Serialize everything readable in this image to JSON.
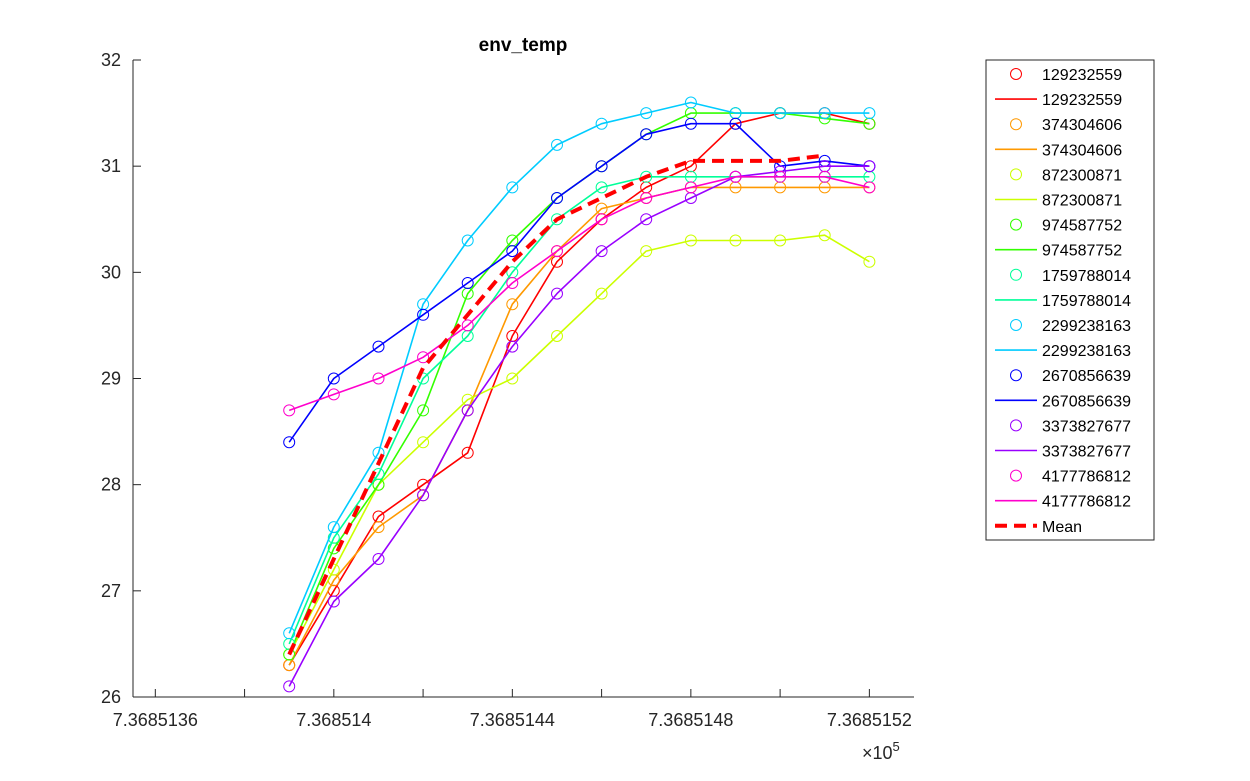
{
  "chart_data": {
    "type": "line",
    "title": "env_temp",
    "xlabel": "",
    "ylabel": "",
    "x_exponent_label": "×10",
    "x_exponent_power": "5",
    "xlim": [
      7.36851355,
      7.3685153
    ],
    "ylim": [
      26,
      32
    ],
    "x_ticks": [
      7.3685136,
      7.368514,
      7.3685144,
      7.3685148,
      7.3685152
    ],
    "x_tick_labels": [
      "7.3685136",
      "7.368514",
      "7.3685144",
      "7.3685148",
      "7.3685152"
    ],
    "y_ticks": [
      26,
      27,
      28,
      29,
      30,
      31,
      32
    ],
    "y_tick_labels": [
      "26",
      "27",
      "28",
      "29",
      "30",
      "31",
      "32"
    ],
    "legend_position": "outside-top-right",
    "series": [
      {
        "name": "129232559",
        "color": "#ff0000",
        "x": [
          7.3685139,
          7.368514,
          7.3685141,
          7.3685142,
          7.3685143,
          7.3685144,
          7.3685145,
          7.3685146,
          7.3685147,
          7.3685148,
          7.3685149,
          7.368515,
          7.3685151,
          7.3685152
        ],
        "y": [
          26.3,
          27.0,
          27.7,
          28.0,
          28.3,
          29.4,
          30.1,
          30.5,
          30.8,
          31.0,
          31.4,
          31.5,
          31.5,
          31.4
        ]
      },
      {
        "name": "374304606",
        "color": "#ff9900",
        "x": [
          7.3685139,
          7.368514,
          7.3685141,
          7.3685142,
          7.3685143,
          7.3685144,
          7.3685145,
          7.3685146,
          7.3685147,
          7.3685148,
          7.3685149,
          7.368515,
          7.3685151,
          7.3685152
        ],
        "y": [
          26.3,
          27.1,
          27.6,
          27.9,
          28.7,
          29.7,
          30.2,
          30.6,
          30.7,
          30.8,
          30.8,
          30.8,
          30.8,
          30.8
        ]
      },
      {
        "name": "872300871",
        "color": "#ccff00",
        "x": [
          7.3685139,
          7.368514,
          7.3685141,
          7.3685142,
          7.3685143,
          7.3685144,
          7.3685145,
          7.3685146,
          7.3685147,
          7.3685148,
          7.3685149,
          7.368515,
          7.3685151,
          7.3685152
        ],
        "y": [
          26.4,
          27.2,
          28.0,
          28.4,
          28.8,
          29.0,
          29.4,
          29.8,
          30.2,
          30.3,
          30.3,
          30.3,
          30.35,
          30.1
        ]
      },
      {
        "name": "974587752",
        "color": "#33ff00",
        "x": [
          7.3685139,
          7.368514,
          7.3685141,
          7.3685142,
          7.3685143,
          7.3685144,
          7.3685145,
          7.3685146,
          7.3685147,
          7.3685148,
          7.3685149,
          7.368515,
          7.3685151,
          7.3685152
        ],
        "y": [
          26.4,
          27.4,
          28.0,
          28.7,
          29.8,
          30.3,
          30.7,
          31.0,
          31.3,
          31.5,
          31.5,
          31.5,
          31.45,
          31.4
        ]
      },
      {
        "name": "1759788014",
        "color": "#00ff99",
        "x": [
          7.3685139,
          7.368514,
          7.3685141,
          7.3685142,
          7.3685143,
          7.3685144,
          7.3685145,
          7.3685146,
          7.3685147,
          7.3685148,
          7.3685149,
          7.368515,
          7.3685151,
          7.3685152
        ],
        "y": [
          26.5,
          27.5,
          28.1,
          29.0,
          29.4,
          30.0,
          30.5,
          30.8,
          30.9,
          30.9,
          30.9,
          30.9,
          30.9,
          30.9
        ]
      },
      {
        "name": "2299238163",
        "color": "#00ccff",
        "x": [
          7.3685139,
          7.368514,
          7.3685141,
          7.3685142,
          7.3685143,
          7.3685144,
          7.3685145,
          7.3685146,
          7.3685147,
          7.3685148,
          7.3685149,
          7.368515,
          7.3685151,
          7.3685152
        ],
        "y": [
          26.6,
          27.6,
          28.3,
          29.7,
          30.3,
          30.8,
          31.2,
          31.4,
          31.5,
          31.6,
          31.5,
          31.5,
          31.5,
          31.5
        ]
      },
      {
        "name": "2670856639",
        "color": "#0000ff",
        "x": [
          7.3685139,
          7.368514,
          7.3685141,
          7.3685142,
          7.3685143,
          7.3685144,
          7.3685145,
          7.3685146,
          7.3685147,
          7.3685148,
          7.3685149,
          7.368515,
          7.3685151,
          7.3685152
        ],
        "y": [
          28.4,
          29.0,
          29.3,
          29.6,
          29.9,
          30.2,
          30.7,
          31.0,
          31.3,
          31.4,
          31.4,
          31.0,
          31.05,
          31.0
        ]
      },
      {
        "name": "3373827677",
        "color": "#9900ff",
        "x": [
          7.3685139,
          7.368514,
          7.3685141,
          7.3685142,
          7.3685143,
          7.3685144,
          7.3685145,
          7.3685146,
          7.3685147,
          7.3685148,
          7.3685149,
          7.368515,
          7.3685151,
          7.3685152
        ],
        "y": [
          26.1,
          26.9,
          27.3,
          27.9,
          28.7,
          29.3,
          29.8,
          30.2,
          30.5,
          30.7,
          30.9,
          30.95,
          31.0,
          31.0
        ]
      },
      {
        "name": "4177786812",
        "color": "#ff00cc",
        "x": [
          7.3685139,
          7.368514,
          7.3685141,
          7.3685142,
          7.3685143,
          7.3685144,
          7.3685145,
          7.3685146,
          7.3685147,
          7.3685148,
          7.3685149,
          7.368515,
          7.3685151,
          7.3685152
        ],
        "y": [
          28.7,
          28.85,
          29.0,
          29.2,
          29.5,
          29.9,
          30.2,
          30.5,
          30.7,
          30.8,
          30.9,
          30.9,
          30.9,
          30.8
        ]
      },
      {
        "name": "Mean",
        "color": "#ff0000",
        "dashed": true,
        "markers": false,
        "x": [
          7.3685139,
          7.368514,
          7.3685141,
          7.3685142,
          7.3685143,
          7.3685144,
          7.3685145,
          7.3685146,
          7.3685147,
          7.3685148,
          7.3685149,
          7.368515,
          7.3685151
        ],
        "y": [
          26.4,
          27.3,
          28.2,
          29.1,
          29.6,
          30.1,
          30.5,
          30.7,
          30.9,
          31.05,
          31.05,
          31.05,
          31.1
        ]
      }
    ]
  }
}
